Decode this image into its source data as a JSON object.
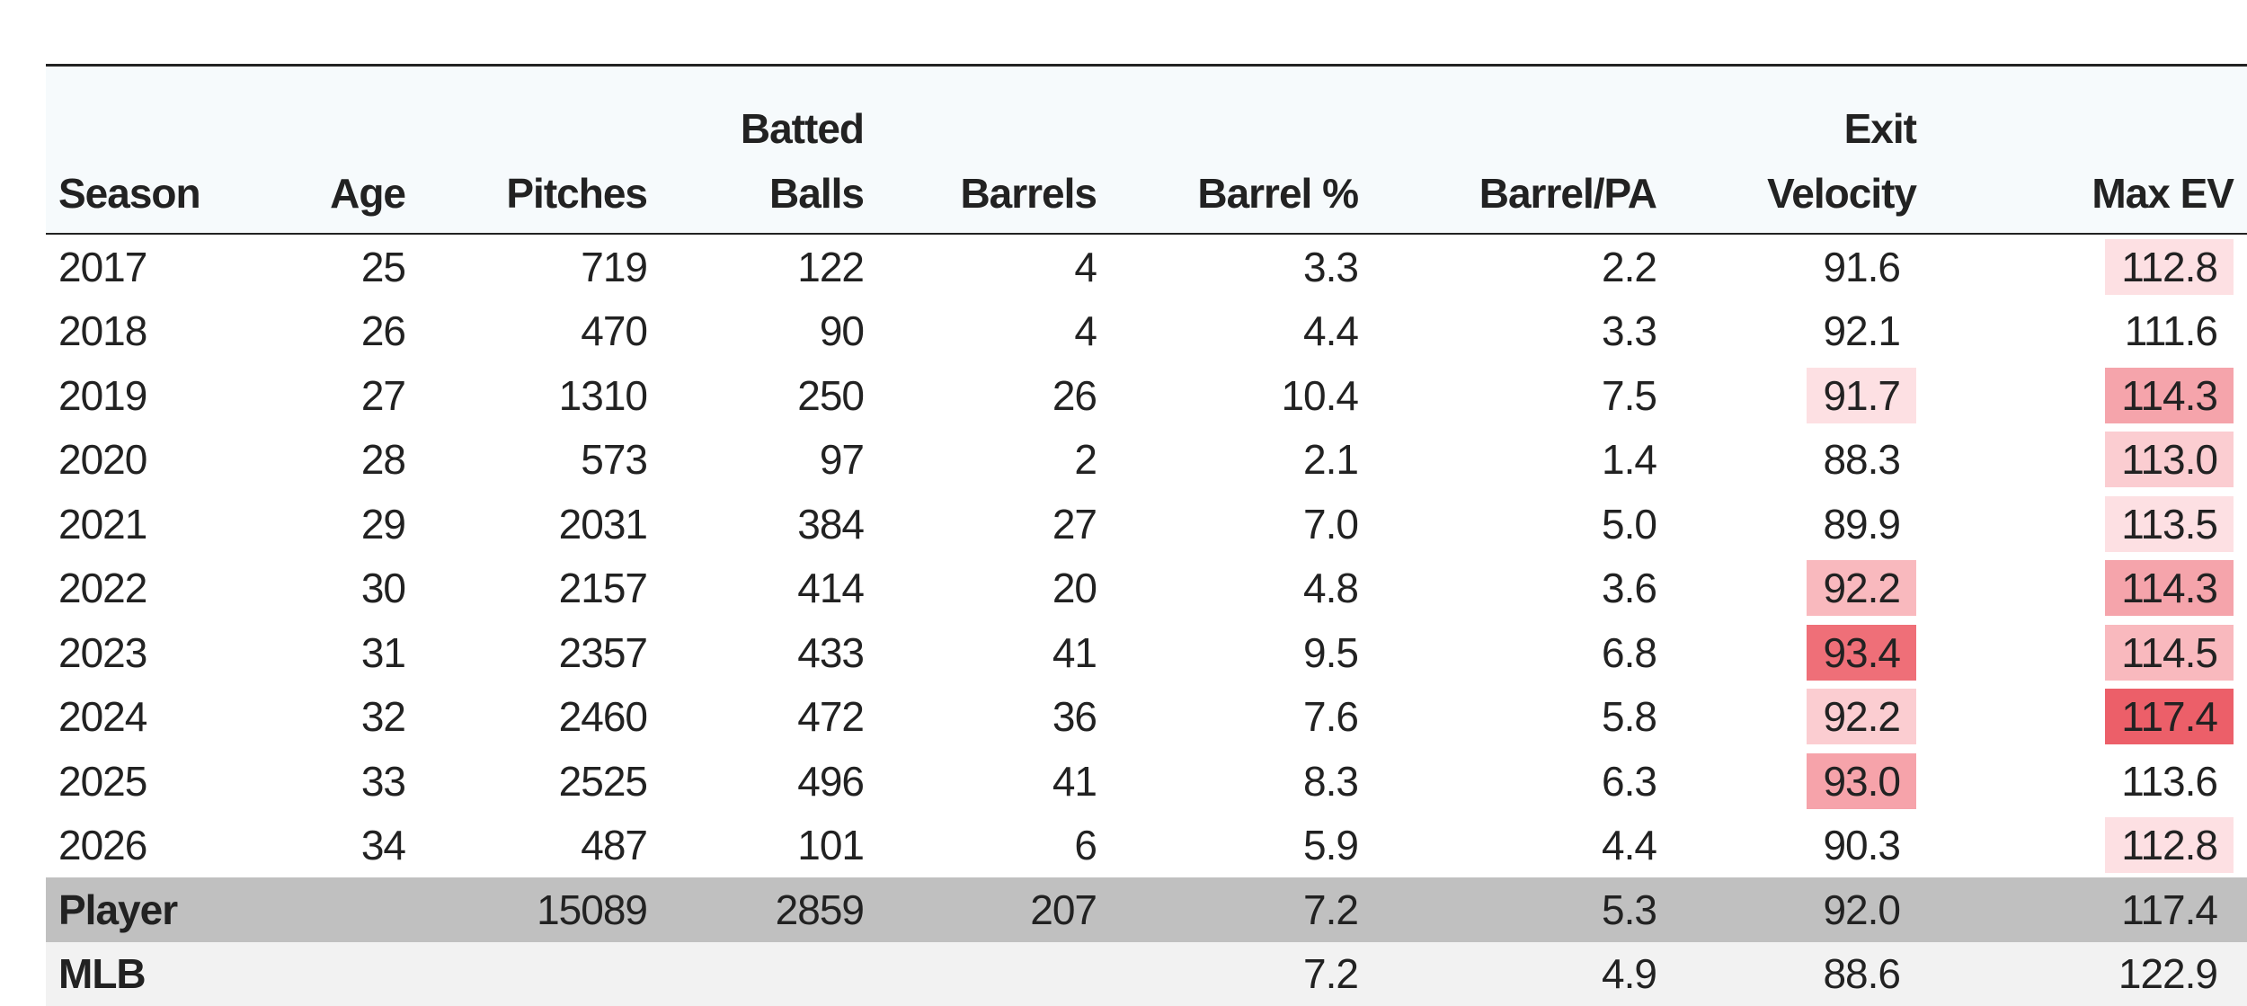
{
  "columns": [
    {
      "l1": "",
      "l2": "Season"
    },
    {
      "l1": "",
      "l2": "Age"
    },
    {
      "l1": "",
      "l2": "Pitches"
    },
    {
      "l1": "Batted",
      "l2": "Balls"
    },
    {
      "l1": "",
      "l2": "Barrels"
    },
    {
      "l1": "",
      "l2": "Barrel %"
    },
    {
      "l1": "",
      "l2": "Barrel/PA"
    },
    {
      "l1": "Exit",
      "l2": "Velocity"
    },
    {
      "l1": "",
      "l2": "Max EV"
    }
  ],
  "rows": [
    {
      "season": "2017",
      "age": "25",
      "pitches": "719",
      "batted_balls": "122",
      "barrels": "4",
      "barrel_pct": "3.3",
      "barrel_pa": "2.2",
      "exit_velocity": "91.6",
      "max_ev": "112.8"
    },
    {
      "season": "2018",
      "age": "26",
      "pitches": "470",
      "batted_balls": "90",
      "barrels": "4",
      "barrel_pct": "4.4",
      "barrel_pa": "3.3",
      "exit_velocity": "92.1",
      "max_ev": "111.6"
    },
    {
      "season": "2019",
      "age": "27",
      "pitches": "1310",
      "batted_balls": "250",
      "barrels": "26",
      "barrel_pct": "10.4",
      "barrel_pa": "7.5",
      "exit_velocity": "91.7",
      "max_ev": "114.3"
    },
    {
      "season": "2020",
      "age": "28",
      "pitches": "573",
      "batted_balls": "97",
      "barrels": "2",
      "barrel_pct": "2.1",
      "barrel_pa": "1.4",
      "exit_velocity": "88.3",
      "max_ev": "113.0"
    },
    {
      "season": "2021",
      "age": "29",
      "pitches": "2031",
      "batted_balls": "384",
      "barrels": "27",
      "barrel_pct": "7.0",
      "barrel_pa": "5.0",
      "exit_velocity": "89.9",
      "max_ev": "113.5"
    },
    {
      "season": "2022",
      "age": "30",
      "pitches": "2157",
      "batted_balls": "414",
      "barrels": "20",
      "barrel_pct": "4.8",
      "barrel_pa": "3.6",
      "exit_velocity": "92.2",
      "max_ev": "114.3"
    },
    {
      "season": "2023",
      "age": "31",
      "pitches": "2357",
      "batted_balls": "433",
      "barrels": "41",
      "barrel_pct": "9.5",
      "barrel_pa": "6.8",
      "exit_velocity": "93.4",
      "max_ev": "114.5"
    },
    {
      "season": "2024",
      "age": "32",
      "pitches": "2460",
      "batted_balls": "472",
      "barrels": "36",
      "barrel_pct": "7.6",
      "barrel_pa": "5.8",
      "exit_velocity": "92.2",
      "max_ev": "117.4"
    },
    {
      "season": "2025",
      "age": "33",
      "pitches": "2525",
      "batted_balls": "496",
      "barrels": "41",
      "barrel_pct": "8.3",
      "barrel_pa": "6.3",
      "exit_velocity": "93.0",
      "max_ev": "113.6"
    },
    {
      "season": "2026",
      "age": "34",
      "pitches": "487",
      "batted_balls": "101",
      "barrels": "6",
      "barrel_pct": "5.9",
      "barrel_pa": "4.4",
      "exit_velocity": "90.3",
      "max_ev": "112.8"
    }
  ],
  "highlights": {
    "exit_velocity": [
      "",
      "",
      "#fde0e3",
      "",
      "",
      "#f9b9be",
      "#ef6f78",
      "#fbcdd1",
      "#f6a3aa",
      ""
    ],
    "max_ev": [
      "#fde0e3",
      "",
      "#f5a4ab",
      "#fbcdd1",
      "#fde0e3",
      "#f5a4ab",
      "#f9b9be",
      "#ec5f69",
      "",
      "#fde0e3"
    ]
  },
  "summary": {
    "player": {
      "label": "Player",
      "pitches": "15089",
      "batted_balls": "2859",
      "barrels": "207",
      "barrel_pct": "7.2",
      "barrel_pa": "5.3",
      "exit_velocity": "92.0",
      "max_ev": "117.4"
    },
    "mlb": {
      "label": "MLB",
      "barrel_pct": "7.2",
      "barrel_pa": "4.9",
      "exit_velocity": "88.6",
      "max_ev": "122.9"
    }
  },
  "colors": {
    "header_bg": "#f6fafc",
    "player_row_bg": "#c0c0c0",
    "mlb_row_bg": "#f2f2f2",
    "rule": "#222222"
  }
}
